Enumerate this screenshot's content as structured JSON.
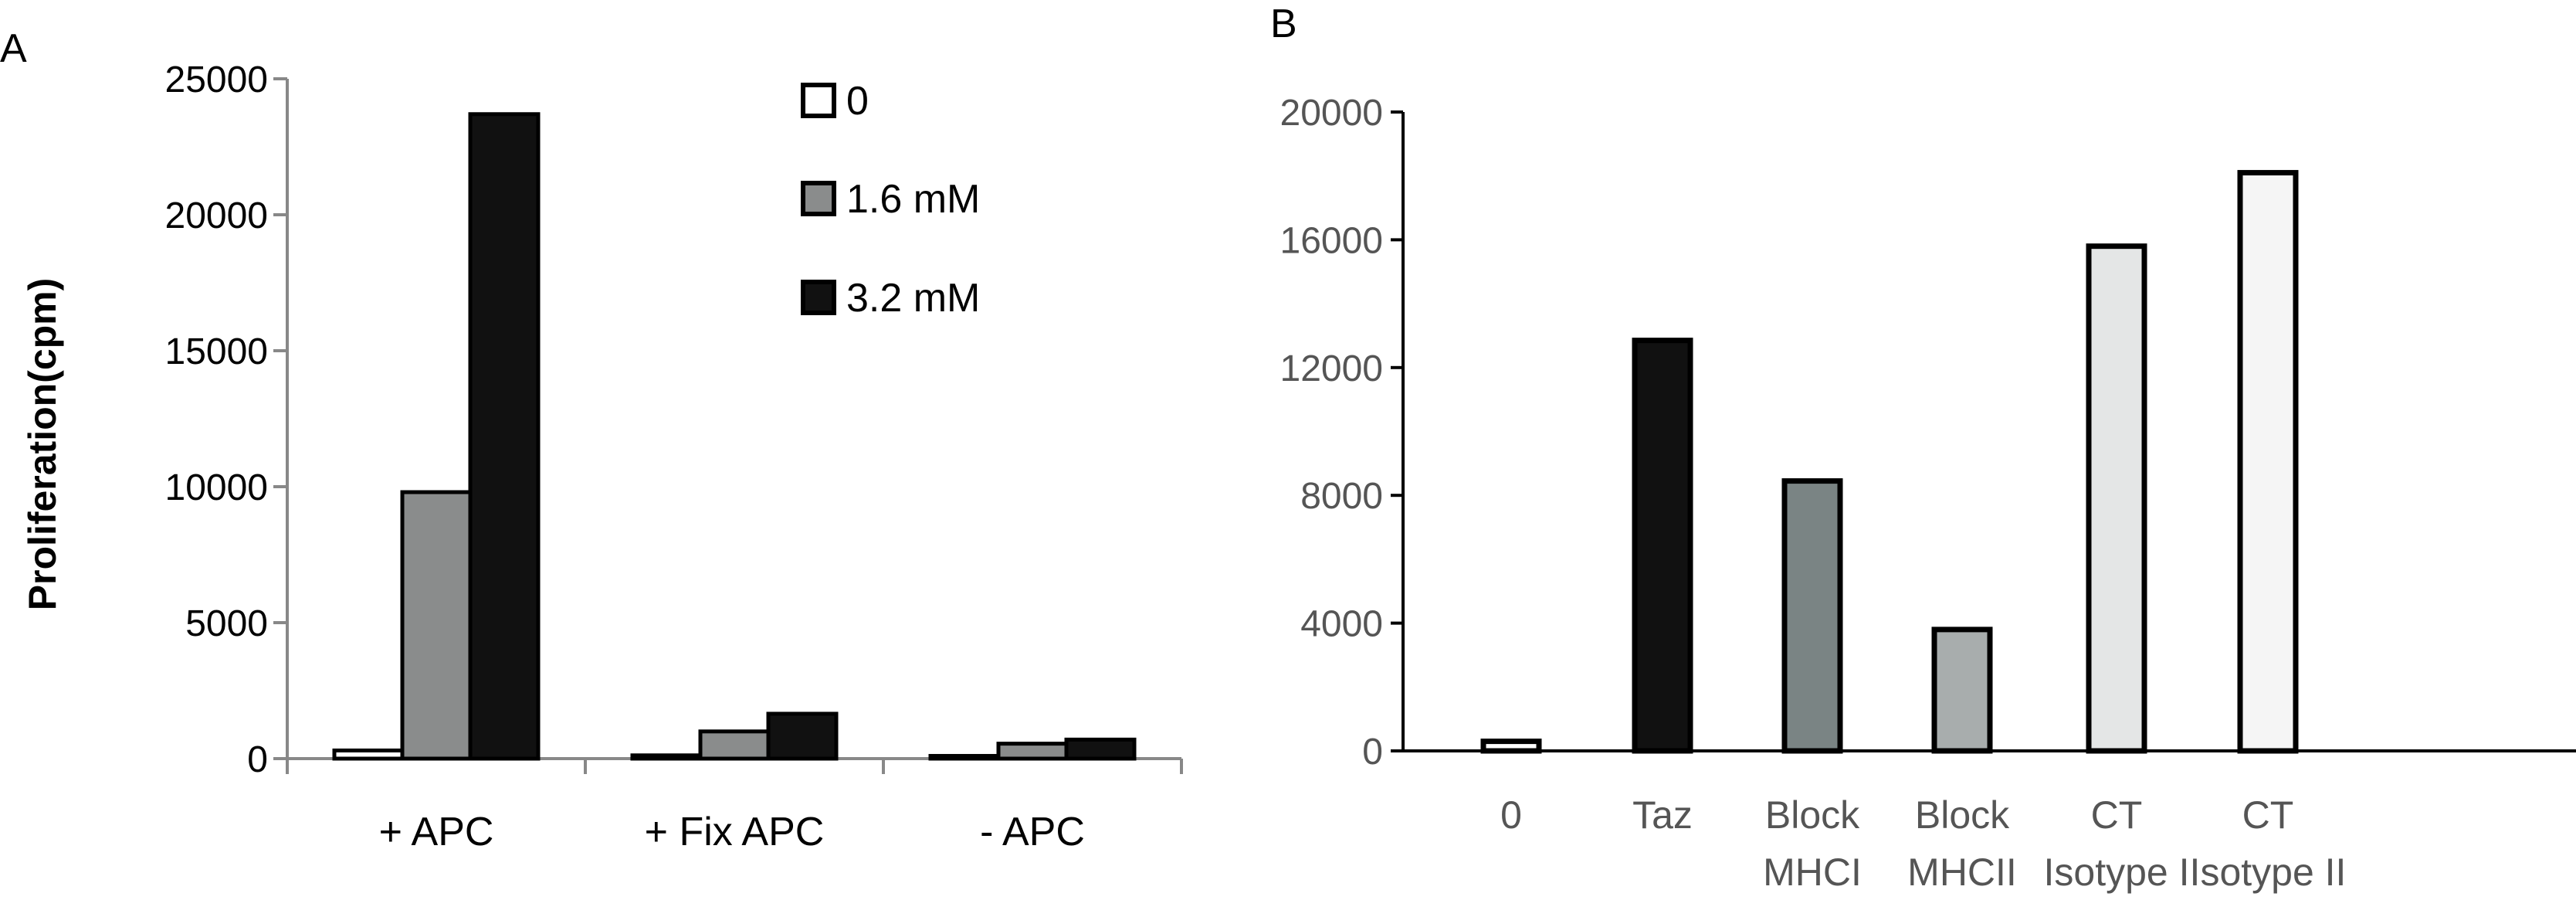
{
  "panels": [
    "A",
    "B"
  ],
  "chart_data": [
    {
      "type": "bar",
      "panel": "A",
      "title": "",
      "xlabel": "",
      "ylabel": "Proliferation(cpm)",
      "ylim": [
        0,
        25000
      ],
      "yticks": [
        0,
        5000,
        10000,
        15000,
        20000,
        25000
      ],
      "categories": [
        "+ APC",
        "+ Fix APC",
        "- APC"
      ],
      "series": [
        {
          "name": "0",
          "values": [
            300,
            120,
            100
          ]
        },
        {
          "name": "1.6 mM",
          "values": [
            9800,
            1000,
            550
          ]
        },
        {
          "name": "3.2 mM",
          "values": [
            23700,
            1650,
            700
          ]
        }
      ],
      "legend_position": "top-right",
      "grid": false,
      "colors": {
        "fills": [
          "#ffffff",
          "#8a8c8c",
          "#111111"
        ],
        "stroke": "#000000",
        "axis": "#888888",
        "text": "#000000"
      }
    },
    {
      "type": "bar",
      "panel": "B",
      "title": "",
      "xlabel": "",
      "ylabel": "",
      "ylim": [
        0,
        20000
      ],
      "yticks": [
        0,
        4000,
        8000,
        12000,
        16000,
        20000
      ],
      "categories": [
        [
          "0"
        ],
        [
          "Taz"
        ],
        [
          "Block",
          "MHCI"
        ],
        [
          "Block",
          "MHCII"
        ],
        [
          "CT",
          "Isotype I"
        ],
        [
          "CT",
          "Isotype II"
        ]
      ],
      "values": [
        300,
        12850,
        8450,
        3800,
        15800,
        18100
      ],
      "grid": false,
      "colors": {
        "fills": [
          "#ffffff",
          "#111111",
          "#7a8484",
          "#a8adad",
          "#e4e6e6",
          "#f5f5f5"
        ],
        "stroke": "#000000",
        "axis": "#000000",
        "text": "#555555"
      }
    }
  ]
}
